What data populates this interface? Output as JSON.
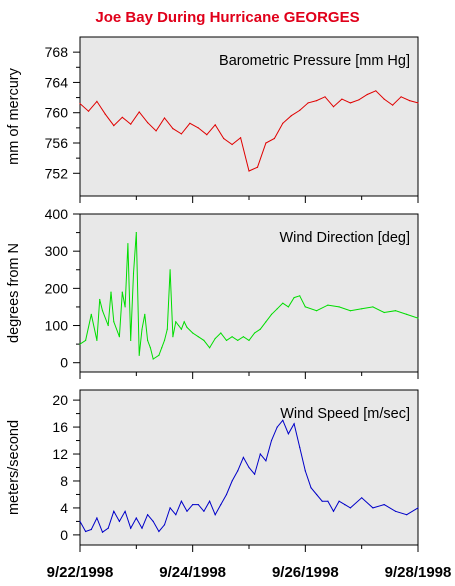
{
  "title": "Joe Bay During Hurricane GEORGES",
  "chart_data": [
    {
      "type": "line",
      "title": "Barometric Pressure [mm Hg]",
      "ylabel": "mm of mercury",
      "ylim": [
        749,
        770
      ],
      "yticks": [
        "752",
        "756",
        "760",
        "764",
        "768"
      ],
      "color": "#e00000",
      "x": [
        0.0,
        0.15,
        0.3,
        0.45,
        0.6,
        0.75,
        0.9,
        1.05,
        1.2,
        1.35,
        1.5,
        1.65,
        1.8,
        1.95,
        2.1,
        2.25,
        2.4,
        2.55,
        2.7,
        2.85,
        3.0,
        3.15,
        3.3,
        3.45,
        3.6,
        3.75,
        3.9,
        4.05,
        4.2,
        4.35,
        4.5,
        4.65,
        4.8,
        4.95,
        5.1,
        5.25,
        5.4,
        5.55,
        5.7,
        5.85,
        6.0
      ],
      "values": [
        761.2,
        760.2,
        761.5,
        759.8,
        758.3,
        759.4,
        758.5,
        760.1,
        758.7,
        757.6,
        759.3,
        757.9,
        757.2,
        758.6,
        758.0,
        757.1,
        758.4,
        756.6,
        755.8,
        756.7,
        752.3,
        752.8,
        756.0,
        756.6,
        758.6,
        759.6,
        760.3,
        761.3,
        761.6,
        762.1,
        760.8,
        761.8,
        761.3,
        761.7,
        762.4,
        762.9,
        761.8,
        761.0,
        762.1,
        761.6,
        761.3
      ],
      "xticks": [
        "9/22/1998",
        "9/24/1998",
        "9/26/1998",
        "9/28/1998"
      ],
      "grid": false
    },
    {
      "type": "line",
      "title": "Wind Direction [deg]",
      "ylabel": "degrees from N",
      "ylim": [
        -25,
        400
      ],
      "yticks": [
        "0",
        "100",
        "200",
        "300",
        "400"
      ],
      "color": "#00dd00",
      "x": [
        0.0,
        0.1,
        0.2,
        0.3,
        0.35,
        0.4,
        0.5,
        0.55,
        0.6,
        0.7,
        0.75,
        0.8,
        0.85,
        0.9,
        0.95,
        1.0,
        1.05,
        1.1,
        1.15,
        1.2,
        1.25,
        1.3,
        1.4,
        1.45,
        1.5,
        1.55,
        1.6,
        1.65,
        1.7,
        1.75,
        1.8,
        1.85,
        1.9,
        2.0,
        2.1,
        2.2,
        2.3,
        2.4,
        2.5,
        2.6,
        2.7,
        2.8,
        2.9,
        3.0,
        3.1,
        3.2,
        3.3,
        3.4,
        3.5,
        3.6,
        3.7,
        3.8,
        3.9,
        4.0,
        4.2,
        4.4,
        4.6,
        4.8,
        5.0,
        5.2,
        5.4,
        5.6,
        5.8,
        6.0
      ],
      "values": [
        50,
        60,
        130,
        60,
        170,
        140,
        100,
        190,
        110,
        70,
        190,
        150,
        320,
        60,
        240,
        350,
        20,
        90,
        130,
        60,
        40,
        10,
        20,
        40,
        60,
        90,
        250,
        70,
        110,
        100,
        90,
        110,
        95,
        80,
        70,
        60,
        40,
        65,
        80,
        60,
        70,
        60,
        70,
        60,
        80,
        90,
        110,
        130,
        145,
        160,
        150,
        175,
        180,
        150,
        140,
        155,
        150,
        140,
        145,
        150,
        135,
        140,
        130,
        120
      ],
      "grid": false
    },
    {
      "type": "line",
      "title": "Wind Speed [m/sec]",
      "ylabel": "meters/second",
      "ylim": [
        -1.5,
        21.5
      ],
      "yticks": [
        "0",
        "4",
        "8",
        "12",
        "16",
        "20"
      ],
      "color": "#0000c8",
      "x": [
        0.0,
        0.1,
        0.2,
        0.3,
        0.4,
        0.5,
        0.6,
        0.7,
        0.8,
        0.9,
        1.0,
        1.1,
        1.2,
        1.3,
        1.4,
        1.5,
        1.6,
        1.7,
        1.8,
        1.9,
        2.0,
        2.1,
        2.2,
        2.3,
        2.4,
        2.5,
        2.6,
        2.7,
        2.8,
        2.9,
        3.0,
        3.1,
        3.2,
        3.3,
        3.4,
        3.5,
        3.6,
        3.7,
        3.8,
        3.9,
        4.0,
        4.1,
        4.2,
        4.3,
        4.4,
        4.5,
        4.6,
        4.7,
        4.8,
        5.0,
        5.2,
        5.4,
        5.6,
        5.8,
        6.0
      ],
      "values": [
        2.0,
        0.5,
        0.8,
        2.5,
        0.4,
        1.0,
        3.5,
        2.0,
        3.5,
        1.0,
        2.5,
        1.0,
        3.0,
        2.0,
        0.5,
        1.5,
        4.0,
        3.0,
        5.0,
        3.5,
        4.5,
        4.5,
        3.5,
        5.0,
        3.0,
        4.5,
        6.0,
        8.0,
        9.5,
        11.5,
        10.0,
        9.0,
        12.0,
        11.0,
        14.0,
        16.0,
        17.0,
        15.0,
        16.5,
        13.0,
        9.5,
        7.0,
        6.0,
        5.0,
        5.0,
        3.5,
        5.0,
        4.5,
        4.0,
        5.5,
        4.0,
        4.5,
        3.5,
        3.0,
        4.0
      ],
      "grid": false
    }
  ]
}
